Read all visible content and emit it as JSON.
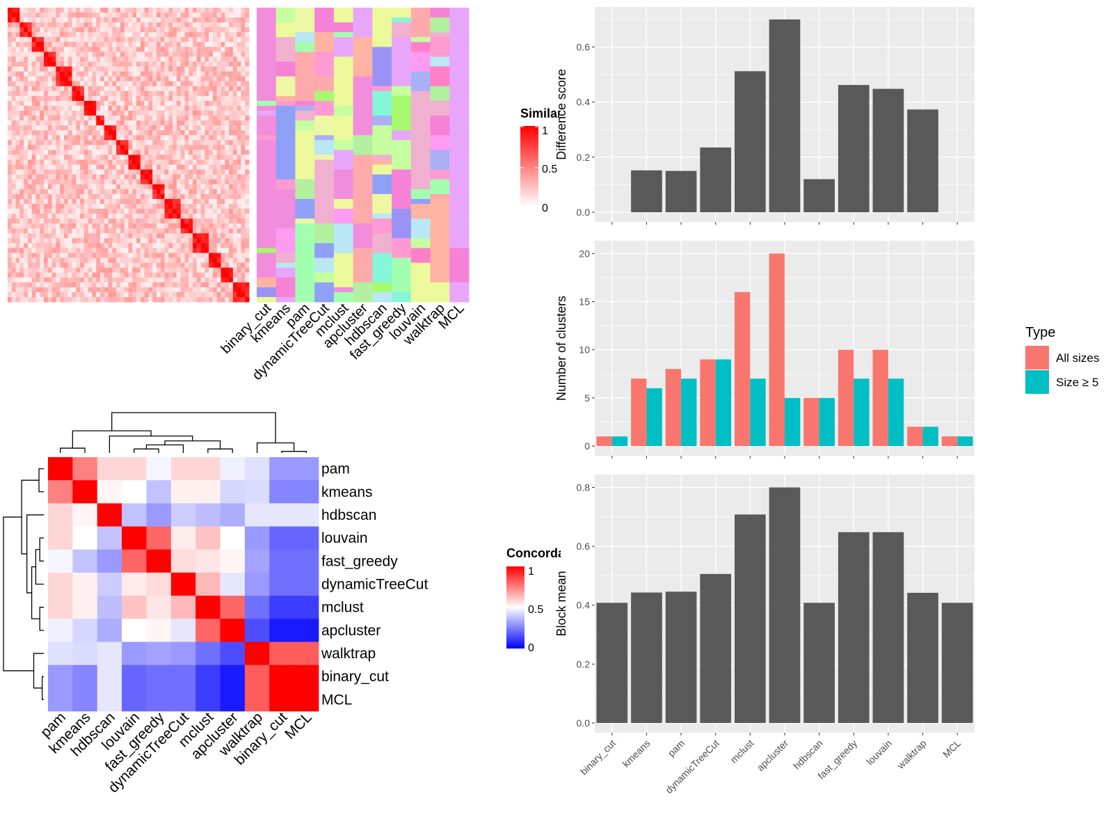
{
  "colors": {
    "sim_high": "#ff0000",
    "sim_low": "#ffffff",
    "conc_high": "#ff0000",
    "conc_mid": "#ffffff",
    "conc_low": "#0000ff",
    "bar_fill": "#595959",
    "panel_bg": "#ebebeb",
    "grid": "#ffffff",
    "type_all": "#f8766d",
    "type_size5": "#00bfc4",
    "class_palette": [
      "#f28ddb",
      "#e8a6fb",
      "#b2f0a0",
      "#ff9bd2",
      "#a3ffb0",
      "#9a93f5",
      "#fe9bf1",
      "#aab0f5",
      "#ffaaaa",
      "#c5ff9f",
      "#ffb3a3",
      "#ebf99b",
      "#85f6d8",
      "#f582d6",
      "#f0b0cf",
      "#a5fa6e",
      "#edf7a4",
      "#8fa0f7",
      "#ff7fc9",
      "#b9e7f3"
    ]
  },
  "heatmap1": {
    "columns": [
      "binary_cut",
      "kmeans",
      "pam",
      "dynamicTreeCut",
      "mclust",
      "apcluster",
      "hdbscan",
      "fast_greedy",
      "louvain",
      "walktrap",
      "MCL"
    ],
    "legend": {
      "title": "Similarity",
      "ticks": [
        "1",
        "0.5",
        "0"
      ]
    }
  },
  "heatmap2": {
    "rows": [
      "pam",
      "kmeans",
      "hdbscan",
      "louvain",
      "fast_greedy",
      "dynamicTreeCut",
      "mclust",
      "apcluster",
      "walktrap",
      "binary_cut",
      "MCL"
    ],
    "columns": [
      "pam",
      "kmeans",
      "hdbscan",
      "louvain",
      "fast_greedy",
      "dynamicTreeCut",
      "mclust",
      "apcluster",
      "walktrap",
      "binary_cut",
      "MCL"
    ],
    "values": [
      [
        1.0,
        0.75,
        0.58,
        0.58,
        0.48,
        0.58,
        0.58,
        0.47,
        0.44,
        0.3,
        0.3
      ],
      [
        0.75,
        1.0,
        0.52,
        0.5,
        0.38,
        0.53,
        0.53,
        0.42,
        0.43,
        0.26,
        0.26
      ],
      [
        0.58,
        0.52,
        1.0,
        0.38,
        0.3,
        0.4,
        0.37,
        0.34,
        0.45,
        0.45,
        0.45
      ],
      [
        0.58,
        0.5,
        0.38,
        1.0,
        0.8,
        0.54,
        0.62,
        0.5,
        0.3,
        0.2,
        0.2
      ],
      [
        0.48,
        0.38,
        0.3,
        0.8,
        1.0,
        0.57,
        0.55,
        0.52,
        0.32,
        0.22,
        0.22
      ],
      [
        0.58,
        0.53,
        0.4,
        0.54,
        0.57,
        1.0,
        0.64,
        0.45,
        0.3,
        0.22,
        0.22
      ],
      [
        0.58,
        0.53,
        0.37,
        0.62,
        0.55,
        0.64,
        1.0,
        0.8,
        0.22,
        0.12,
        0.12
      ],
      [
        0.47,
        0.42,
        0.34,
        0.5,
        0.52,
        0.45,
        0.8,
        1.0,
        0.15,
        0.05,
        0.05
      ],
      [
        0.44,
        0.43,
        0.45,
        0.3,
        0.32,
        0.3,
        0.22,
        0.15,
        1.0,
        0.82,
        0.82
      ],
      [
        0.3,
        0.26,
        0.45,
        0.2,
        0.22,
        0.22,
        0.12,
        0.05,
        0.82,
        1.0,
        1.0
      ],
      [
        0.3,
        0.26,
        0.45,
        0.2,
        0.22,
        0.22,
        0.12,
        0.05,
        0.82,
        1.0,
        1.0
      ]
    ],
    "legend": {
      "title": "Concordance",
      "ticks": [
        "1",
        "0.5",
        "0"
      ]
    }
  },
  "chart_data": [
    {
      "type": "bar",
      "categories": [
        "binary_cut",
        "kmeans",
        "pam",
        "dynamicTreeCut",
        "mclust",
        "apcluster",
        "hdbscan",
        "fast_greedy",
        "louvain",
        "walktrap",
        "MCL"
      ],
      "values": [
        0,
        0.152,
        0.15,
        0.235,
        0.512,
        0.7,
        0.12,
        0.462,
        0.448,
        0.373,
        0
      ],
      "ylabel": "Difference score",
      "ylim": [
        0,
        0.72
      ],
      "yticks": [
        0.0,
        0.2,
        0.4,
        0.6
      ],
      "ytick_labels": [
        "0.0",
        "0.2",
        "0.4",
        "0.6"
      ]
    },
    {
      "type": "bar",
      "categories": [
        "binary_cut",
        "kmeans",
        "pam",
        "dynamicTreeCut",
        "mclust",
        "apcluster",
        "hdbscan",
        "fast_greedy",
        "louvain",
        "walktrap",
        "MCL"
      ],
      "series": [
        {
          "name": "All sizes",
          "values": [
            1,
            7,
            8,
            9,
            16,
            20,
            5,
            10,
            10,
            2,
            1
          ]
        },
        {
          "name": "Size ≥ 5",
          "values": [
            1,
            6,
            7,
            9,
            7,
            5,
            5,
            7,
            7,
            2,
            1
          ]
        }
      ],
      "ylabel": "Number of clusters",
      "ylim": [
        0,
        20.6
      ],
      "yticks": [
        0,
        5,
        10,
        15,
        20
      ],
      "ytick_labels": [
        "0",
        "5",
        "10",
        "15",
        "20"
      ],
      "legend": {
        "title": "Type",
        "position": "right"
      }
    },
    {
      "type": "bar",
      "categories": [
        "binary_cut",
        "kmeans",
        "pam",
        "dynamicTreeCut",
        "mclust",
        "apcluster",
        "hdbscan",
        "fast_greedy",
        "louvain",
        "walktrap",
        "MCL"
      ],
      "values": [
        0.408,
        0.443,
        0.446,
        0.506,
        0.708,
        0.8,
        0.408,
        0.648,
        0.648,
        0.442,
        0.408
      ],
      "ylabel": "Block mean",
      "ylim": [
        0,
        0.82
      ],
      "yticks": [
        0.0,
        0.2,
        0.4,
        0.6,
        0.8
      ],
      "ytick_labels": [
        "0.0",
        "0.2",
        "0.4",
        "0.6",
        "0.8"
      ]
    }
  ]
}
